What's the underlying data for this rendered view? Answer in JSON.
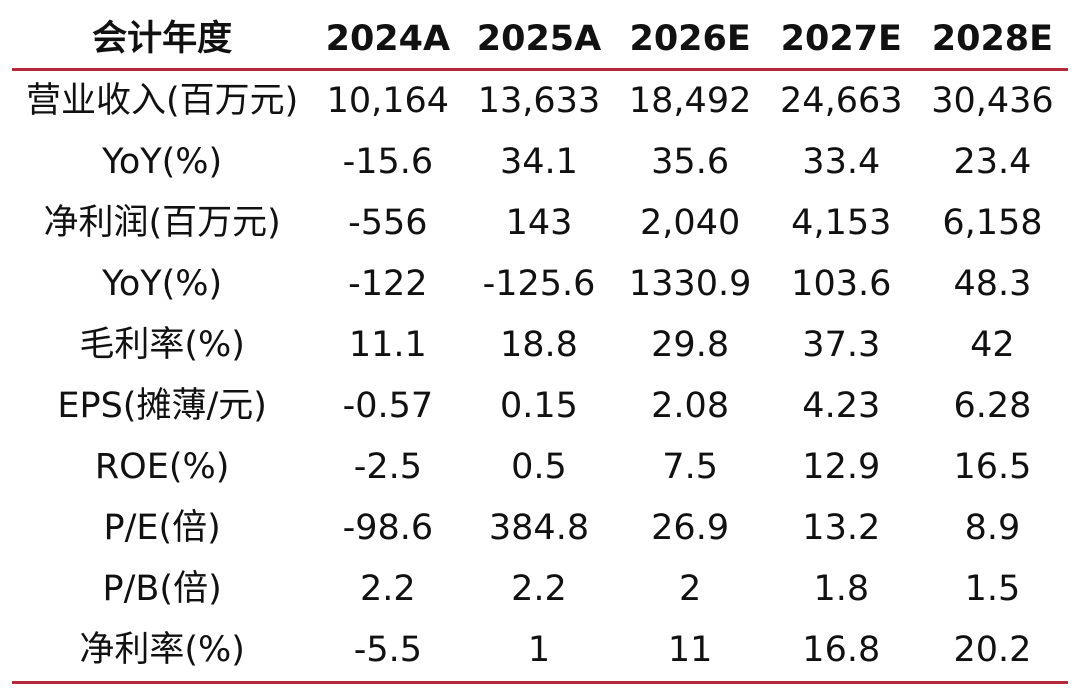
{
  "table": {
    "header": [
      "会计年度",
      "2024A",
      "2025A",
      "2026E",
      "2027E",
      "2028E"
    ],
    "rows": [
      [
        "营业收入(百万元)",
        "10,164",
        "13,633",
        "18,492",
        "24,663",
        "30,436"
      ],
      [
        "YoY(%)",
        "-15.6",
        "34.1",
        "35.6",
        "33.4",
        "23.4"
      ],
      [
        "净利润(百万元)",
        "-556",
        "143",
        "2,040",
        "4,153",
        "6,158"
      ],
      [
        "YoY(%)",
        "-122",
        "-125.6",
        "1330.9",
        "103.6",
        "48.3"
      ],
      [
        "毛利率(%)",
        "11.1",
        "18.8",
        "29.8",
        "37.3",
        "42"
      ],
      [
        "EPS(摊薄/元)",
        "-0.57",
        "0.15",
        "2.08",
        "4.23",
        "6.28"
      ],
      [
        "ROE(%)",
        "-2.5",
        "0.5",
        "7.5",
        "12.9",
        "16.5"
      ],
      [
        "P/E(倍)",
        "-98.6",
        "384.8",
        "26.9",
        "13.2",
        "8.9"
      ],
      [
        "P/B(倍)",
        "2.2",
        "2.2",
        "2",
        "1.8",
        "1.5"
      ],
      [
        "净利率(%)",
        "-5.5",
        "1",
        "11",
        "16.8",
        "20.2"
      ]
    ]
  },
  "colors": {
    "rule": "#b8283a",
    "text": "#111111",
    "background": "#ffffff"
  }
}
